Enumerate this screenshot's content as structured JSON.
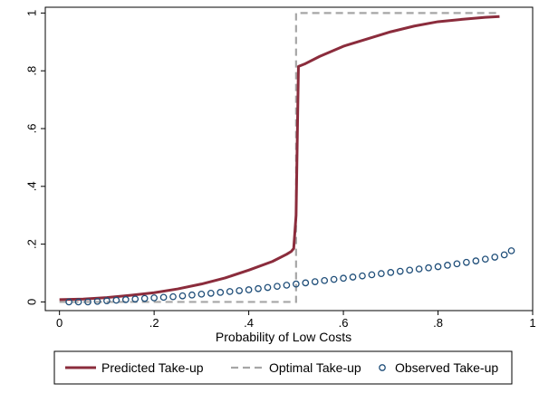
{
  "chart_data": {
    "type": "line",
    "title": "",
    "xlabel": "Probability of Low Costs",
    "ylabel": "",
    "xlim": [
      -0.03,
      1.0
    ],
    "ylim": [
      -0.03,
      1.02
    ],
    "x_ticks": [
      0,
      0.2,
      0.4,
      0.6,
      0.8,
      1
    ],
    "x_tick_labels": [
      "0",
      ".2",
      ".4",
      ".6",
      ".8",
      "1"
    ],
    "y_ticks": [
      0,
      0.2,
      0.4,
      0.6,
      0.8,
      1
    ],
    "y_tick_labels": [
      "0",
      ".2",
      ".4",
      ".6",
      ".8",
      "1"
    ],
    "grid": false,
    "legend_position": "bottom",
    "colors": {
      "predicted": "#8b2c3c",
      "optimal": "#a6a6a6",
      "observed": "#1f4e79"
    },
    "series": [
      {
        "name": "Predicted Take-up",
        "style": "solid-line",
        "x": [
          0,
          0.05,
          0.1,
          0.15,
          0.2,
          0.25,
          0.3,
          0.35,
          0.4,
          0.45,
          0.48,
          0.49,
          0.495,
          0.5,
          0.505,
          0.52,
          0.55,
          0.6,
          0.65,
          0.7,
          0.75,
          0.8,
          0.85,
          0.9,
          0.93
        ],
        "y": [
          0.008,
          0.01,
          0.015,
          0.023,
          0.032,
          0.045,
          0.062,
          0.083,
          0.11,
          0.14,
          0.165,
          0.175,
          0.185,
          0.3,
          0.815,
          0.825,
          0.85,
          0.885,
          0.91,
          0.935,
          0.955,
          0.97,
          0.978,
          0.985,
          0.988
        ]
      },
      {
        "name": "Optimal Take-up",
        "style": "dashed-line",
        "x": [
          0,
          0.5,
          0.5,
          0.93
        ],
        "y": [
          0,
          0,
          1,
          1
        ]
      },
      {
        "name": "Observed Take-up",
        "style": "hollow-circles",
        "x": [
          0.02,
          0.04,
          0.06,
          0.08,
          0.1,
          0.12,
          0.14,
          0.16,
          0.18,
          0.2,
          0.22,
          0.24,
          0.26,
          0.28,
          0.3,
          0.32,
          0.34,
          0.36,
          0.38,
          0.4,
          0.42,
          0.44,
          0.46,
          0.48,
          0.5,
          0.52,
          0.54,
          0.56,
          0.58,
          0.6,
          0.62,
          0.64,
          0.66,
          0.68,
          0.7,
          0.72,
          0.74,
          0.76,
          0.78,
          0.8,
          0.82,
          0.84,
          0.86,
          0.88,
          0.9,
          0.92,
          0.94,
          0.955
        ],
        "y": [
          0.0,
          0.0,
          0.0,
          0.002,
          0.004,
          0.006,
          0.008,
          0.01,
          0.012,
          0.014,
          0.016,
          0.018,
          0.021,
          0.024,
          0.027,
          0.03,
          0.033,
          0.036,
          0.039,
          0.042,
          0.046,
          0.05,
          0.054,
          0.058,
          0.062,
          0.066,
          0.07,
          0.074,
          0.078,
          0.082,
          0.086,
          0.09,
          0.094,
          0.098,
          0.102,
          0.106,
          0.11,
          0.114,
          0.118,
          0.122,
          0.127,
          0.132,
          0.137,
          0.142,
          0.148,
          0.155,
          0.163,
          0.177
        ]
      }
    ]
  }
}
